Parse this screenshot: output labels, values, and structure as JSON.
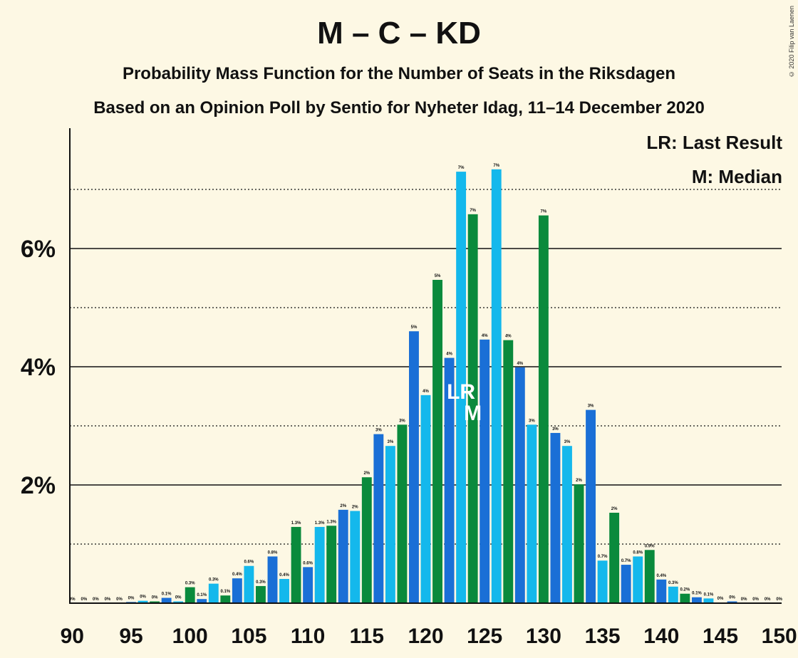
{
  "title": "M – C – KD",
  "subtitle1": "Probability Mass Function for the Number of Seats in the Riksdagen",
  "subtitle2": "Based on an Opinion Poll by Sentio for Nyheter Idag, 11–14 December 2020",
  "copyright": "© 2020 Filip van Laenen",
  "legend": {
    "lr": "LR: Last Result",
    "m": "M: Median"
  },
  "colors": {
    "dark_blue": "#1a6fd6",
    "light_blue": "#14b8ec",
    "green": "#0a8a3c",
    "background": "#fdf8e4"
  },
  "chart_data": {
    "type": "bar",
    "x": [
      90,
      91,
      92,
      93,
      94,
      95,
      96,
      97,
      98,
      99,
      100,
      101,
      102,
      103,
      104,
      105,
      106,
      107,
      108,
      109,
      110,
      111,
      112,
      113,
      114,
      115,
      116,
      117,
      118,
      119,
      120,
      121,
      122,
      123,
      124,
      125,
      126,
      127,
      128,
      129,
      130,
      131,
      132,
      133,
      134,
      135,
      136,
      137,
      138,
      139,
      140,
      141,
      142,
      143,
      144,
      145,
      146,
      147,
      148,
      149,
      150
    ],
    "values": [
      0,
      0,
      0,
      0,
      0,
      0.02,
      0.04,
      0.03,
      0.09,
      0.03,
      0.27,
      0.07,
      0.33,
      0.13,
      0.42,
      0.63,
      0.29,
      0.79,
      0.41,
      1.29,
      0.61,
      1.29,
      1.31,
      1.58,
      1.56,
      2.13,
      2.86,
      2.66,
      3.02,
      4.6,
      3.52,
      5.47,
      4.15,
      7.3,
      6.58,
      4.46,
      7.34,
      4.45,
      3.99,
      3.02,
      6.56,
      2.88,
      2.66,
      2.01,
      3.27,
      0.72,
      1.53,
      0.65,
      0.79,
      0.9,
      0.4,
      0.28,
      0.16,
      0.1,
      0.08,
      0.01,
      0.03,
      0,
      0,
      0,
      0
    ],
    "labels": [
      "0%",
      "0%",
      "0%",
      "0%",
      "0%",
      "0%",
      "0%",
      "0%",
      "0.1%",
      "0%",
      "0.3%",
      "0.1%",
      "0.3%",
      "0.1%",
      "0.4%",
      "0.6%",
      "0.3%",
      "0.8%",
      "0.4%",
      "1.3%",
      "0.6%",
      "1.3%",
      "1.3%",
      "2%",
      "2%",
      "2%",
      "3%",
      "3%",
      "3%",
      "5%",
      "4%",
      "5%",
      "4%",
      "7%",
      "7%",
      "4%",
      "7%",
      "4%",
      "4%",
      "3%",
      "7%",
      "3%",
      "3%",
      "2%",
      "3%",
      "0.7%",
      "2%",
      "0.7%",
      "0.8%",
      "0.9%",
      "0.4%",
      "0.3%",
      "0.2%",
      "0.1%",
      "0.1%",
      "0%",
      "0%",
      "0%",
      "0%",
      "0%",
      "0%"
    ],
    "ylim": [
      0,
      7.5
    ],
    "yticks": [
      {
        "value": 2,
        "label": "2%"
      },
      {
        "value": 4,
        "label": "4%"
      },
      {
        "value": 6,
        "label": "6%"
      }
    ],
    "minor_gridlines": [
      1,
      3,
      5,
      7
    ],
    "xticks": [
      90,
      95,
      100,
      105,
      110,
      115,
      120,
      125,
      130,
      135,
      140,
      145,
      150
    ],
    "last_result": 123,
    "median": 124,
    "markers": {
      "last_result": "LR",
      "median": "M"
    }
  }
}
